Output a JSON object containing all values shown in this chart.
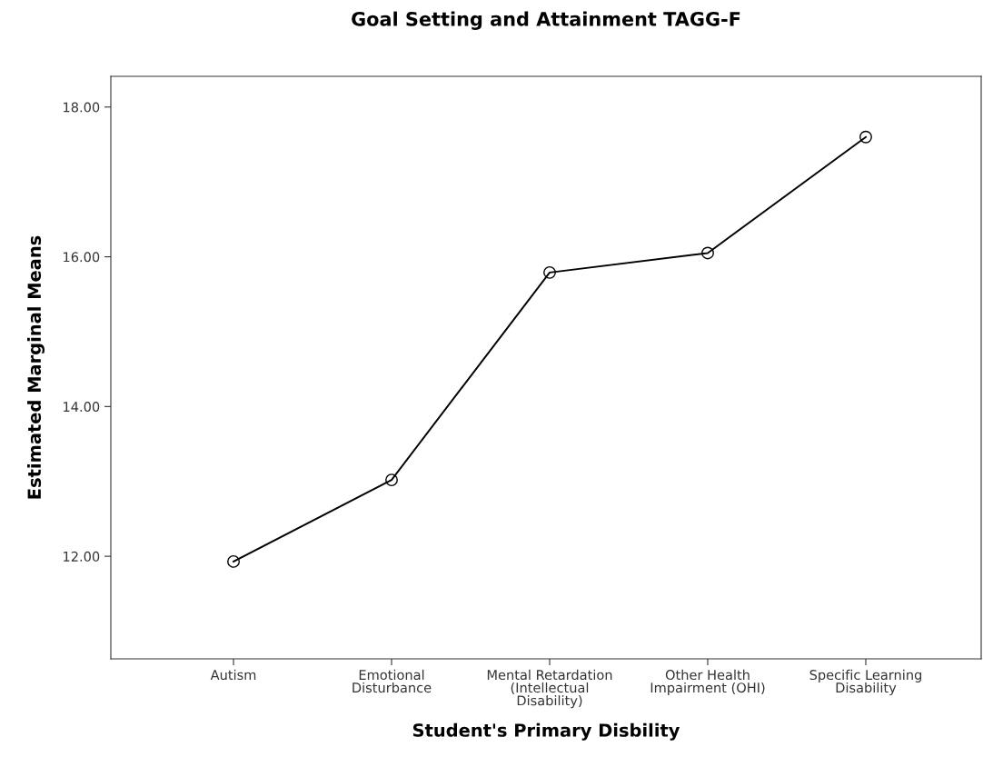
{
  "chart_data": {
    "type": "line",
    "title": "Goal Setting and Attainment TAGG-F",
    "xlabel": "Student's Primary Disbility",
    "ylabel": "Estimated Marginal Means",
    "categories": [
      "Autism",
      "Emotional\nDisturbance",
      "Mental Retardation\n(Intellectual\nDisability)",
      "Other Health\nImpairment (OHI)",
      "Specific Learning\nDisability"
    ],
    "series": [
      {
        "color": "#000000",
        "values": [
          11.93,
          13.02,
          15.79,
          16.05,
          17.6
        ]
      }
    ],
    "ylim": [
      10.63,
      18.41
    ],
    "yticks": [
      {
        "value": 12,
        "label": "12.00"
      },
      {
        "value": 14,
        "label": "14.00"
      },
      {
        "value": 16,
        "label": "16.00"
      },
      {
        "value": 18,
        "label": "18.00"
      }
    ],
    "marker": "circle",
    "line_style": "solid"
  }
}
